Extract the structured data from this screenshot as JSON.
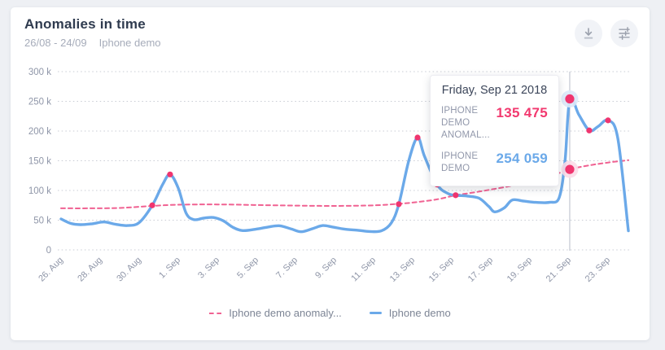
{
  "card": {
    "title": "Anomalies in time",
    "date_range": "26/08 - 24/09",
    "segment": "Iphone demo"
  },
  "toolbar": {
    "download_icon": "download-icon",
    "settings_icon": "sliders-icon",
    "icon_color": "#9aa0ac",
    "button_bg": "#f1f3f7"
  },
  "tooltip": {
    "date": "Friday, Sep 21 2018",
    "rows": [
      {
        "label": "IPHONE DEMO ANOMAL...",
        "value": "135 475",
        "color": "#f2396f"
      },
      {
        "label": "IPHONE DEMO",
        "value": "254 059",
        "color": "#6ba9e9"
      }
    ]
  },
  "legend": {
    "items": [
      {
        "label": "Iphone demo anomaly...",
        "style": "dashed",
        "color": "#f06292"
      },
      {
        "label": "Iphone demo",
        "style": "solid",
        "color": "#6ba9e9"
      }
    ]
  },
  "chart_data": {
    "type": "line",
    "title": "Anomalies in time",
    "x_axis": {
      "start": "2018-08-26",
      "end": "2018-09-24",
      "unit": "day offset from Aug 26"
    },
    "x_ticks": [
      {
        "day": 0,
        "label": "26. Aug"
      },
      {
        "day": 2,
        "label": "28. Aug"
      },
      {
        "day": 4,
        "label": "30. Aug"
      },
      {
        "day": 6,
        "label": "1. Sep"
      },
      {
        "day": 8,
        "label": "3. Sep"
      },
      {
        "day": 10,
        "label": "5. Sep"
      },
      {
        "day": 12,
        "label": "7. Sep"
      },
      {
        "day": 14,
        "label": "9. Sep"
      },
      {
        "day": 16,
        "label": "11. Sep"
      },
      {
        "day": 18,
        "label": "13. Sep"
      },
      {
        "day": 20,
        "label": "15. Sep"
      },
      {
        "day": 22,
        "label": "17. Sep"
      },
      {
        "day": 24,
        "label": "19. Sep"
      },
      {
        "day": 26,
        "label": "21. Sep"
      },
      {
        "day": 28,
        "label": "23. Sep"
      }
    ],
    "y_ticks": [
      {
        "k": 0,
        "label": "0"
      },
      {
        "k": 50,
        "label": "50 k"
      },
      {
        "k": 100,
        "label": "100 k"
      },
      {
        "k": 150,
        "label": "150 k"
      },
      {
        "k": 200,
        "label": "200 k"
      },
      {
        "k": 250,
        "label": "250 k"
      },
      {
        "k": 300,
        "label": "300 k"
      }
    ],
    "ylim_k": [
      0,
      300
    ],
    "grid": "dotted-horizontal",
    "legend_position": "bottom-center",
    "series": [
      {
        "name": "Iphone demo",
        "style": "solid",
        "color": "#6ba9e9",
        "width": 3.4,
        "points_day_k": [
          [
            0,
            52
          ],
          [
            0.5,
            44.5
          ],
          [
            1,
            42.5
          ],
          [
            1.6,
            44
          ],
          [
            2.2,
            47
          ],
          [
            2.8,
            43
          ],
          [
            3.4,
            41
          ],
          [
            4,
            46
          ],
          [
            4.67,
            75
          ],
          [
            5.2,
            110
          ],
          [
            5.58,
            127
          ],
          [
            6,
            104
          ],
          [
            6.4,
            62
          ],
          [
            6.8,
            51
          ],
          [
            7.3,
            53.5
          ],
          [
            7.8,
            54.5
          ],
          [
            8.3,
            49
          ],
          [
            8.8,
            38
          ],
          [
            9.3,
            32.5
          ],
          [
            10,
            35
          ],
          [
            10.6,
            38.5
          ],
          [
            11.2,
            40.5
          ],
          [
            11.8,
            35
          ],
          [
            12.3,
            30.5
          ],
          [
            12.9,
            36
          ],
          [
            13.4,
            41
          ],
          [
            13.9,
            38.5
          ],
          [
            14.5,
            35
          ],
          [
            15.2,
            33
          ],
          [
            15.8,
            31
          ],
          [
            16.4,
            32
          ],
          [
            16.9,
            45
          ],
          [
            17.29,
            77
          ],
          [
            17.8,
            150
          ],
          [
            18.25,
            189
          ],
          [
            18.6,
            158
          ],
          [
            19.25,
            110
          ],
          [
            19.8,
            95
          ],
          [
            20.2,
            92
          ],
          [
            20.8,
            90.5
          ],
          [
            21.4,
            87
          ],
          [
            21.9,
            73
          ],
          [
            22.2,
            64
          ],
          [
            22.7,
            71
          ],
          [
            23.1,
            84
          ],
          [
            23.7,
            82
          ],
          [
            24.3,
            80
          ],
          [
            25,
            80
          ],
          [
            25.5,
            88
          ],
          [
            25.8,
            150
          ],
          [
            26.04,
            254
          ],
          [
            26.5,
            228
          ],
          [
            27.04,
            201
          ],
          [
            27.5,
            208
          ],
          [
            28,
            218
          ],
          [
            28.5,
            188
          ],
          [
            29.04,
            32
          ]
        ]
      },
      {
        "name": "Iphone demo anomaly...",
        "style": "dashed",
        "color": "#f06292",
        "width": 2,
        "points_day_k": [
          [
            0,
            70
          ],
          [
            1.5,
            70
          ],
          [
            3,
            70.5
          ],
          [
            4.67,
            74
          ],
          [
            6,
            76
          ],
          [
            8,
            76.5
          ],
          [
            10,
            75.5
          ],
          [
            12,
            74.5
          ],
          [
            14,
            74
          ],
          [
            16,
            75
          ],
          [
            17.29,
            77.5
          ],
          [
            18.25,
            80.5
          ],
          [
            19.25,
            85
          ],
          [
            20.2,
            92
          ],
          [
            21,
            96
          ],
          [
            22,
            101.5
          ],
          [
            23,
            107.5
          ],
          [
            24,
            114.5
          ],
          [
            25,
            123.5
          ],
          [
            26.04,
            135.5
          ],
          [
            27,
            142
          ],
          [
            28,
            147
          ],
          [
            29.04,
            151
          ]
        ]
      }
    ],
    "anomaly_dots_day_k": [
      [
        4.67,
        75
      ],
      [
        5.58,
        127
      ],
      [
        17.29,
        77
      ],
      [
        18.25,
        189
      ],
      [
        19.25,
        110
      ],
      [
        20.2,
        92
      ],
      [
        27.04,
        201
      ],
      [
        28,
        218
      ]
    ],
    "dot_color": "#f0356f",
    "highlight": {
      "day": 26.04,
      "date": "Friday, Sep 21 2018",
      "crosshair_color": "#b7bcc9",
      "points": [
        {
          "series": "Iphone demo",
          "value": 254059,
          "k": 254.059,
          "halo": "#dce8f8"
        },
        {
          "series": "Iphone demo anomaly...",
          "value": 135475,
          "k": 135.475,
          "halo": "#fbdbe8"
        }
      ]
    }
  }
}
